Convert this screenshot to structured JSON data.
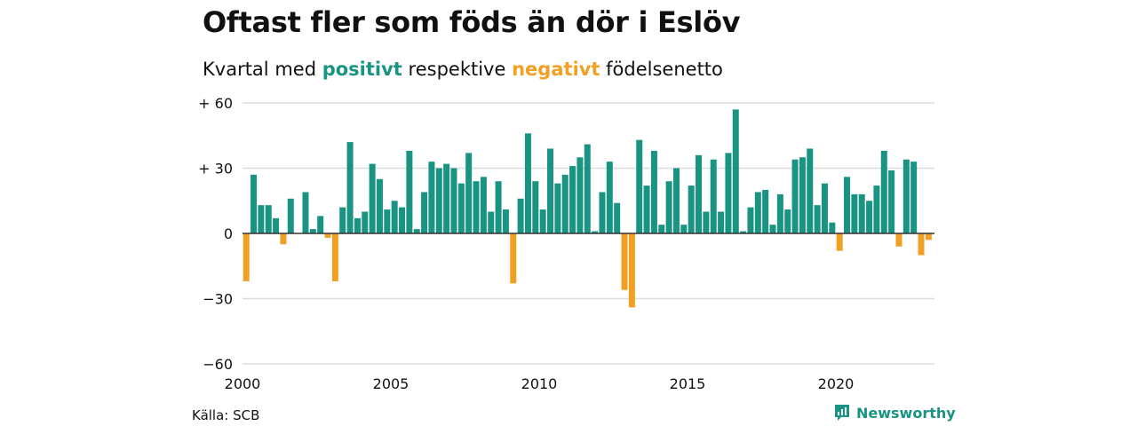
{
  "header": {
    "title": "Oftast fler som föds än dör i Eslöv",
    "subtitle_prefix": "Kvartal med",
    "subtitle_positive": "positivt",
    "subtitle_middle": "respektive",
    "subtitle_negative": "negativt",
    "subtitle_suffix": "födelsenetto"
  },
  "footer": {
    "source": "Källa: SCB",
    "brand": "Newsworthy",
    "brand_icon": "newsworthy-logo-icon"
  },
  "colors": {
    "positive": "#1a9482",
    "negative": "#f2a024",
    "grid": "#dddddd",
    "zero_line": "#333333",
    "text": "#111111"
  },
  "chart_data": {
    "type": "bar",
    "title": "Oftast fler som föds än dör i Eslöv",
    "subtitle": "Kvartal med positivt respektive negativt födelsenetto",
    "x_start": "2000 Q1",
    "y_ticks": [
      60,
      30,
      0,
      -30,
      -60
    ],
    "y_tick_labels": [
      "+ 60",
      "+ 30",
      "0",
      "−30",
      "−60"
    ],
    "ylim": [
      -60,
      60
    ],
    "x_ticks": [
      2000,
      2005,
      2010,
      2015,
      2020
    ],
    "x_tick_labels": [
      "2000",
      "2005",
      "2010",
      "2015",
      "2020"
    ],
    "grid": true,
    "legend": "none",
    "values": [
      -22,
      27,
      13,
      13,
      7,
      -5,
      16,
      0,
      19,
      2,
      8,
      -2,
      -22,
      12,
      42,
      7,
      10,
      32,
      25,
      11,
      15,
      12,
      38,
      2,
      19,
      33,
      30,
      32,
      30,
      23,
      37,
      24,
      26,
      10,
      24,
      11,
      -23,
      16,
      46,
      24,
      11,
      39,
      23,
      27,
      31,
      35,
      41,
      1,
      19,
      33,
      14,
      -26,
      -34,
      43,
      22,
      38,
      4,
      24,
      30,
      4,
      22,
      36,
      10,
      34,
      10,
      37,
      57,
      1,
      12,
      19,
      20,
      4,
      18,
      11,
      34,
      35,
      39,
      13,
      23,
      5,
      -8,
      26,
      18,
      18,
      15,
      22,
      38,
      29,
      -6,
      34,
      33,
      -10,
      -3
    ]
  }
}
